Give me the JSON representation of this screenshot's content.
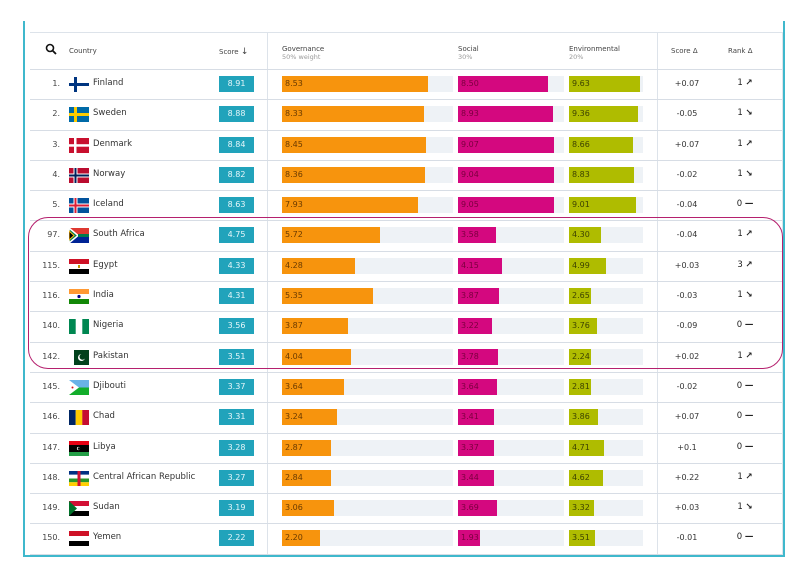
{
  "header": {
    "search_icon": "search-icon",
    "country": "Country",
    "score": "Score",
    "score_sort_icon": "arrow-down-icon",
    "governance": "Governance",
    "governance_weight": "50% weight",
    "social": "Social",
    "social_weight": "30%",
    "environmental": "Environmental",
    "environmental_weight": "20%",
    "score_delta": "Score Δ",
    "rank_delta": "Rank Δ"
  },
  "colors": {
    "score": "#21a3bb",
    "governance": "#f7940d",
    "social": "#d4087f",
    "environmental": "#afbc00",
    "highlight": "#b5206e",
    "frame": "#3fb8cc"
  },
  "rows": [
    {
      "rank": "1.",
      "country": "Finland",
      "flag": "fi",
      "score": "8.91",
      "gov": "8.53",
      "soc": "8.50",
      "env": "9.63",
      "sd": "+0.07",
      "rd": "1",
      "dir": "up"
    },
    {
      "rank": "2.",
      "country": "Sweden",
      "flag": "se",
      "score": "8.88",
      "gov": "8.33",
      "soc": "8.93",
      "env": "9.36",
      "sd": "-0.05",
      "rd": "1",
      "dir": "down"
    },
    {
      "rank": "3.",
      "country": "Denmark",
      "flag": "dk",
      "score": "8.84",
      "gov": "8.45",
      "soc": "9.07",
      "env": "8.66",
      "sd": "+0.07",
      "rd": "1",
      "dir": "up"
    },
    {
      "rank": "4.",
      "country": "Norway",
      "flag": "no",
      "score": "8.82",
      "gov": "8.36",
      "soc": "9.04",
      "env": "8.83",
      "sd": "-0.02",
      "rd": "1",
      "dir": "down"
    },
    {
      "rank": "5.",
      "country": "Iceland",
      "flag": "is",
      "score": "8.63",
      "gov": "7.93",
      "soc": "9.05",
      "env": "9.01",
      "sd": "-0.04",
      "rd": "0",
      "dir": "none"
    },
    {
      "rank": "97.",
      "country": "South Africa",
      "flag": "za",
      "score": "4.75",
      "gov": "5.72",
      "soc": "3.58",
      "env": "4.30",
      "sd": "-0.04",
      "rd": "1",
      "dir": "up"
    },
    {
      "rank": "115.",
      "country": "Egypt",
      "flag": "eg",
      "score": "4.33",
      "gov": "4.28",
      "soc": "4.15",
      "env": "4.99",
      "sd": "+0.03",
      "rd": "3",
      "dir": "up"
    },
    {
      "rank": "116.",
      "country": "India",
      "flag": "in",
      "score": "4.31",
      "gov": "5.35",
      "soc": "3.87",
      "env": "2.65",
      "sd": "-0.03",
      "rd": "1",
      "dir": "down"
    },
    {
      "rank": "140.",
      "country": "Nigeria",
      "flag": "ng",
      "score": "3.56",
      "gov": "3.87",
      "soc": "3.22",
      "env": "3.76",
      "sd": "-0.09",
      "rd": "0",
      "dir": "none"
    },
    {
      "rank": "142.",
      "country": "Pakistan",
      "flag": "pk",
      "score": "3.51",
      "gov": "4.04",
      "soc": "3.78",
      "env": "2.24",
      "sd": "+0.02",
      "rd": "1",
      "dir": "up"
    },
    {
      "rank": "145.",
      "country": "Djibouti",
      "flag": "dj",
      "score": "3.37",
      "gov": "3.64",
      "soc": "3.64",
      "env": "2.81",
      "sd": "-0.02",
      "rd": "0",
      "dir": "none"
    },
    {
      "rank": "146.",
      "country": "Chad",
      "flag": "td",
      "score": "3.31",
      "gov": "3.24",
      "soc": "3.41",
      "env": "3.86",
      "sd": "+0.07",
      "rd": "0",
      "dir": "none"
    },
    {
      "rank": "147.",
      "country": "Libya",
      "flag": "ly",
      "score": "3.28",
      "gov": "2.87",
      "soc": "3.37",
      "env": "4.71",
      "sd": "+0.1",
      "rd": "0",
      "dir": "none"
    },
    {
      "rank": "148.",
      "country": "Central African Republic",
      "flag": "cf",
      "score": "3.27",
      "gov": "2.84",
      "soc": "3.44",
      "env": "4.62",
      "sd": "+0.22",
      "rd": "1",
      "dir": "up"
    },
    {
      "rank": "149.",
      "country": "Sudan",
      "flag": "sd",
      "score": "3.19",
      "gov": "3.06",
      "soc": "3.69",
      "env": "3.32",
      "sd": "+0.03",
      "rd": "1",
      "dir": "down"
    },
    {
      "rank": "150.",
      "country": "Yemen",
      "flag": "ye",
      "score": "2.22",
      "gov": "2.20",
      "soc": "1.93",
      "env": "3.51",
      "sd": "-0.01",
      "rd": "0",
      "dir": "none"
    }
  ]
}
